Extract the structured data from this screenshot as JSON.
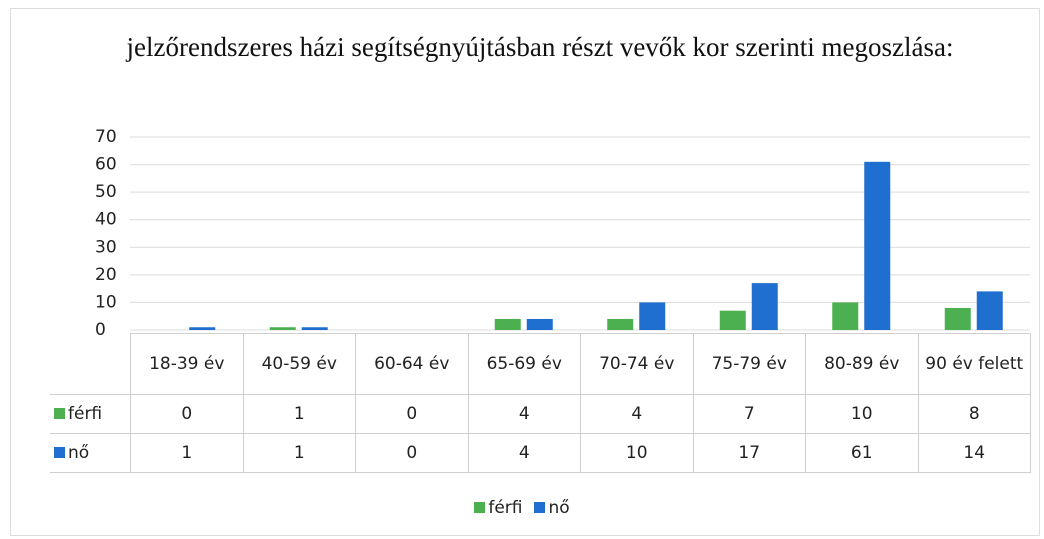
{
  "chart_data": {
    "type": "bar",
    "title": "jelzőrendszeres házi segítségnyújtásban részt vevők kor szerinti megoszlása:",
    "categories": [
      "18-39 év",
      "40-59 év",
      "60-64 év",
      "65-69 év",
      "70-74 év",
      "75-79 év",
      "80-89 év",
      "90 év felett"
    ],
    "series": [
      {
        "name": "férfi",
        "color": "#4caf50",
        "values": [
          0,
          1,
          0,
          4,
          4,
          7,
          10,
          8
        ]
      },
      {
        "name": "nő",
        "color": "#1f6fd1",
        "values": [
          1,
          1,
          0,
          4,
          10,
          17,
          61,
          14
        ]
      }
    ],
    "ylim": [
      0,
      70
    ],
    "yticks": [
      0,
      10,
      20,
      30,
      40,
      50,
      60,
      70
    ],
    "grid": true
  }
}
